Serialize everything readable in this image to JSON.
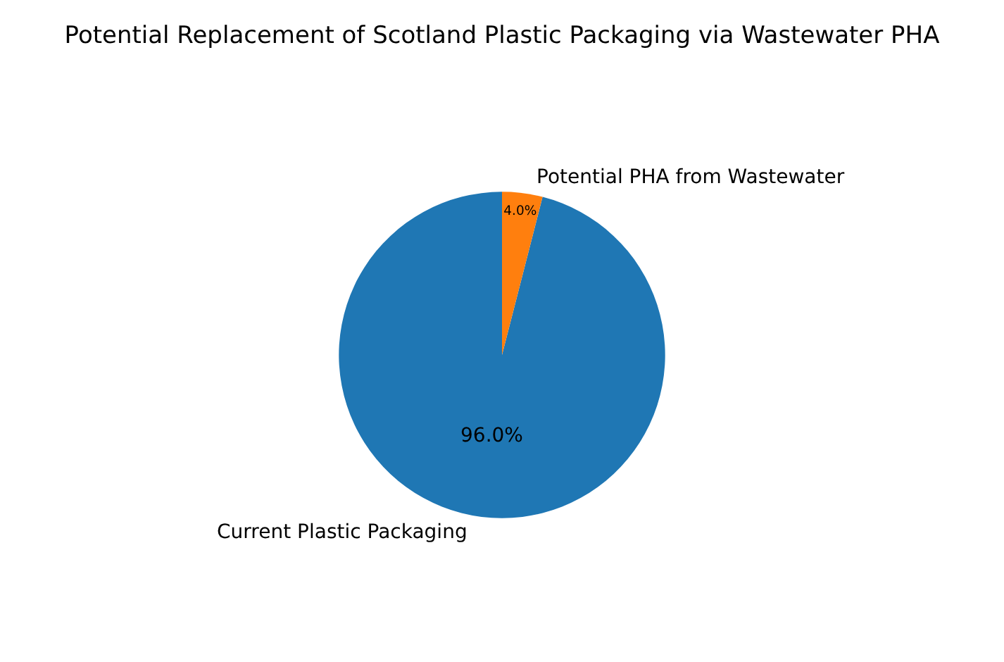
{
  "chart_data": {
    "type": "pie",
    "title": "Potential Replacement of Scotland Plastic Packaging via Wastewater PHA",
    "categories": [
      "Current Plastic Packaging",
      "Potential PHA from Wastewater"
    ],
    "values": [
      96,
      4
    ],
    "colors": [
      "#1f77b4",
      "#ff7f0e"
    ],
    "value_labels": [
      "96.0%",
      "4.0%"
    ]
  }
}
